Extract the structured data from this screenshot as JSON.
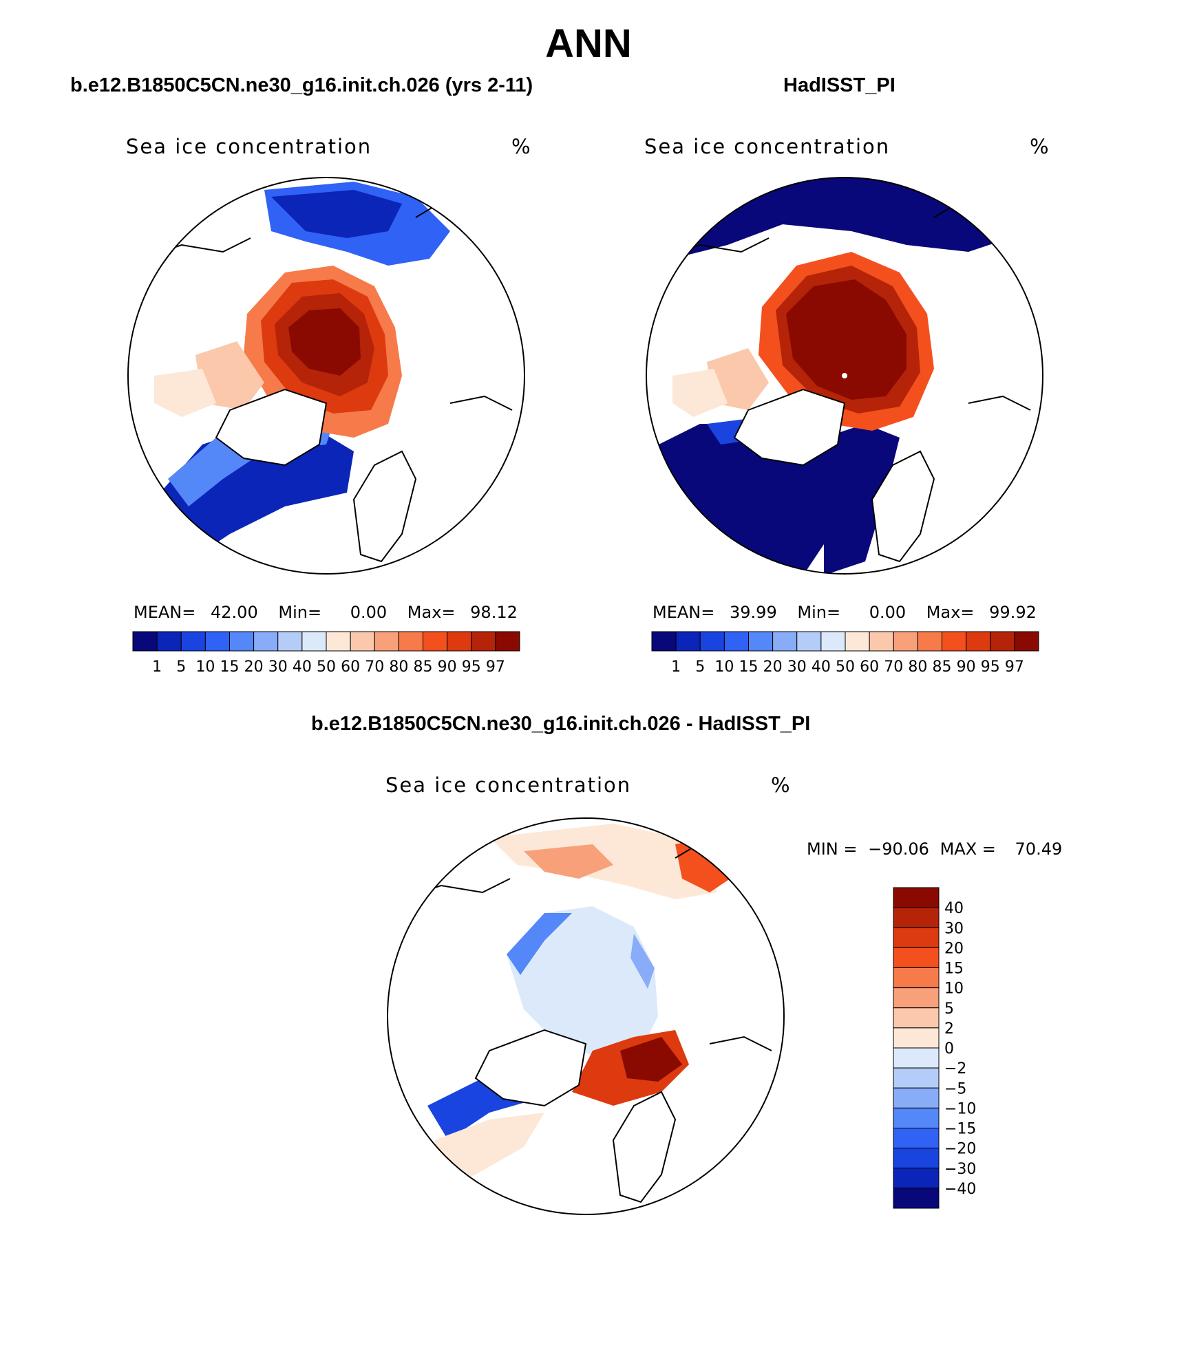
{
  "page": {
    "title": "ANN"
  },
  "panels": [
    {
      "title": "b.e12.B1850C5CN.ne30_g16.init.ch.026 (yrs 2-11)",
      "variable": "Sea ice concentration",
      "units": "%",
      "stats": {
        "mean_label": "MEAN=",
        "mean": "42.00",
        "min_label": "Min=",
        "min": "0.00",
        "max_label": "Max=",
        "max": "98.12"
      }
    },
    {
      "title": "HadISST_PI",
      "variable": "Sea ice concentration",
      "units": "%",
      "stats": {
        "mean_label": "MEAN=",
        "mean": "39.99",
        "min_label": "Min=",
        "min": "0.00",
        "max_label": "Max=",
        "max": "99.92"
      }
    },
    {
      "title": "b.e12.B1850C5CN.ne30_g16.init.ch.026 - HadISST_PI",
      "variable": "Sea ice concentration",
      "units": "%",
      "stats": {
        "min_label": "MIN =",
        "min": "−90.06",
        "max_label": "MAX =",
        "max": "70.49"
      }
    }
  ],
  "colorbars": {
    "sequential": {
      "labels": [
        "1",
        "5",
        "10",
        "15",
        "20",
        "30",
        "40",
        "50",
        "60",
        "70",
        "80",
        "85",
        "90",
        "95",
        "97"
      ],
      "colors": [
        "#08087a",
        "#0a25b8",
        "#1a44e0",
        "#2f62f5",
        "#5487f7",
        "#88acf7",
        "#b4cdf8",
        "#dce9fb",
        "#fde8d8",
        "#fbc8ac",
        "#f8a07a",
        "#f77a4a",
        "#f4501e",
        "#dd3a10",
        "#b52408",
        "#8a0a02"
      ]
    },
    "diverging": {
      "labels": [
        "40",
        "30",
        "20",
        "15",
        "10",
        "5",
        "2",
        "0",
        "−2",
        "−5",
        "−10",
        "−15",
        "−20",
        "−30",
        "−40"
      ],
      "colors": [
        "#8a0a02",
        "#b52408",
        "#dd3a10",
        "#f4501e",
        "#f77a4a",
        "#f8a07a",
        "#fbc8ac",
        "#fde8d8",
        "#dce9fb",
        "#b4cdf8",
        "#88acf7",
        "#5487f7",
        "#2f62f5",
        "#1a44e0",
        "#0a25b8",
        "#08087a"
      ]
    }
  }
}
